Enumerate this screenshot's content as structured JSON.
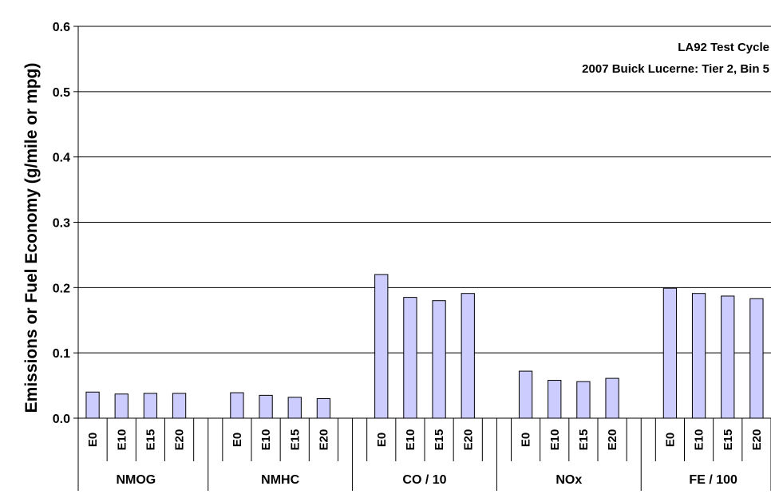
{
  "chart_data": {
    "type": "bar",
    "ylabel": "Emissions or Fuel Economy (g/mile or mpg)",
    "ylim": [
      0,
      0.6
    ],
    "yticks": [
      "0.0",
      "0.1",
      "0.2",
      "0.3",
      "0.4",
      "0.5",
      "0.6"
    ],
    "grid": true,
    "annotations": [
      "LA92 Test Cycle",
      "2007 Buick Lucerne:  Tier 2, Bin 5"
    ],
    "categories": [
      "E0",
      "E10",
      "E15",
      "E20"
    ],
    "groups": [
      {
        "name": "NMOG",
        "values": [
          0.04,
          0.037,
          0.038,
          0.038
        ]
      },
      {
        "name": "NMHC",
        "values": [
          0.039,
          0.035,
          0.032,
          0.03
        ]
      },
      {
        "name": "CO / 10",
        "values": [
          0.22,
          0.185,
          0.18,
          0.191
        ]
      },
      {
        "name": "NOx",
        "values": [
          0.072,
          0.058,
          0.056,
          0.061
        ]
      },
      {
        "name": "FE / 100",
        "values": [
          0.199,
          0.191,
          0.187,
          0.183
        ]
      }
    ],
    "bar_color": "#ccccff",
    "bar_border": "#000000"
  }
}
